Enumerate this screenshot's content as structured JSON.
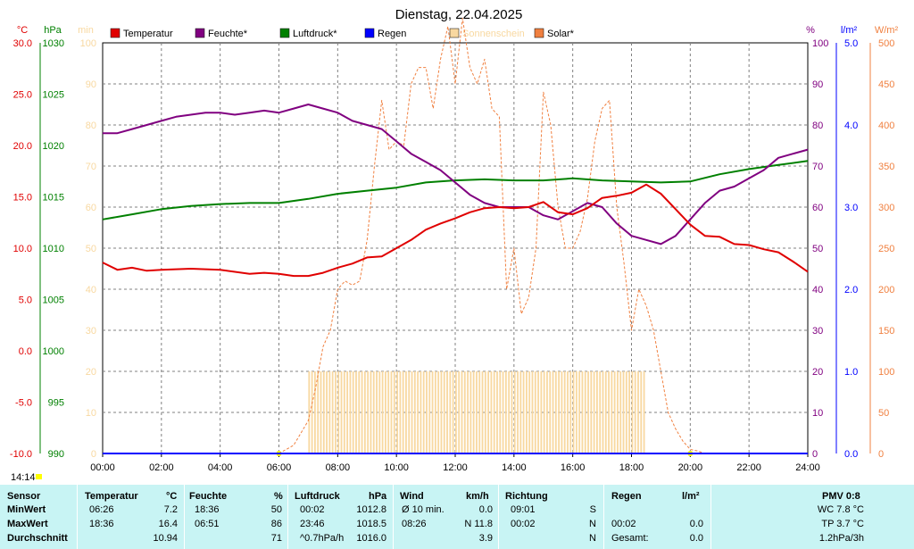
{
  "title": "Dienstag, 22.04.2025",
  "colors": {
    "temperature": "#e00000",
    "humidity": "#800080",
    "pressure": "#008000",
    "rain": "#0000ff",
    "sunshine": "#f8d8a0",
    "solar": "#f08040",
    "grid": "#808080",
    "panel": "#c8f4f4"
  },
  "axes": {
    "temp_unit": "°C",
    "pressure_unit": "hPa",
    "sun_unit": "min",
    "hum_unit": "%",
    "rain_unit": "l/m²",
    "solar_unit": "W/m²",
    "temp_ticks": [
      "30.0",
      "25.0",
      "20.0",
      "15.0",
      "10.0",
      "5.0",
      "0.0",
      "-5.0",
      "-10.0"
    ],
    "pressure_ticks": [
      "1030",
      "1025",
      "1020",
      "1015",
      "1010",
      "1005",
      "1000",
      "995",
      "990"
    ],
    "sun_ticks": [
      "100",
      "90",
      "80",
      "70",
      "60",
      "50",
      "40",
      "30",
      "20",
      "10",
      "0"
    ],
    "hum_ticks": [
      "100",
      "90",
      "80",
      "70",
      "60",
      "50",
      "40",
      "30",
      "20",
      "10",
      "0"
    ],
    "rain_ticks": [
      "5.0",
      "4.0",
      "3.0",
      "2.0",
      "1.0",
      "0.0"
    ],
    "solar_ticks": [
      "500",
      "450",
      "400",
      "350",
      "300",
      "250",
      "200",
      "150",
      "100",
      "50",
      "0"
    ],
    "time_ticks": [
      "00:00",
      "02:00",
      "04:00",
      "06:00",
      "08:00",
      "10:00",
      "12:00",
      "14:00",
      "16:00",
      "18:00",
      "20:00",
      "22:00",
      "24:00"
    ],
    "current_time": "14:14"
  },
  "legend": [
    {
      "label": "Temperatur",
      "color": "#e00000"
    },
    {
      "label": "Feuchte*",
      "color": "#800080"
    },
    {
      "label": "Luftdruck*",
      "color": "#008000"
    },
    {
      "label": "Regen",
      "color": "#0000ff"
    },
    {
      "label": "Sonnenschein",
      "color": "#f8d8a0"
    },
    {
      "label": "Solar*",
      "color": "#f08040"
    }
  ],
  "chart_data": {
    "type": "line",
    "title": "Dienstag, 22.04.2025",
    "x_range": [
      "00:00",
      "24:00"
    ],
    "temp_ylim": [
      -10,
      30
    ],
    "pressure_ylim": [
      990,
      1030
    ],
    "humidity_ylim": [
      0,
      100
    ],
    "rain_ylim": [
      0,
      5
    ],
    "solar_ylim": [
      0,
      500
    ],
    "sunshine_ylim": [
      0,
      100
    ],
    "series": [
      {
        "name": "Temperatur",
        "hours": [
          0,
          0.5,
          1,
          1.5,
          2,
          3,
          4,
          5,
          5.5,
          6,
          6.5,
          7,
          7.5,
          8,
          8.5,
          9,
          9.5,
          10,
          10.5,
          11,
          11.5,
          12,
          12.5,
          13,
          13.5,
          14,
          14.5,
          15,
          15.5,
          16,
          16.5,
          17,
          17.5,
          18,
          18.5,
          19,
          19.5,
          20,
          20.5,
          21,
          21.5,
          22,
          22.5,
          23,
          23.5,
          24
        ],
        "values": [
          8.6,
          7.9,
          8.1,
          7.8,
          7.9,
          8.0,
          7.9,
          7.5,
          7.6,
          7.5,
          7.3,
          7.3,
          7.6,
          8.1,
          8.5,
          9.1,
          9.2,
          10.0,
          10.8,
          11.8,
          12.4,
          12.9,
          13.5,
          13.9,
          14.0,
          13.9,
          14.0,
          14.5,
          13.5,
          13.3,
          13.9,
          14.9,
          15.1,
          15.4,
          16.2,
          15.3,
          13.8,
          12.3,
          11.2,
          11.1,
          10.4,
          10.3,
          9.9,
          9.6,
          8.7,
          7.7
        ]
      },
      {
        "name": "Feuchte*",
        "hours": [
          0,
          0.5,
          1,
          1.5,
          2,
          2.5,
          3,
          3.5,
          4,
          4.5,
          5,
          5.5,
          6,
          6.5,
          7,
          7.5,
          8,
          8.5,
          9,
          9.5,
          10,
          10.5,
          11,
          11.5,
          12,
          12.5,
          13,
          13.5,
          14,
          14.5,
          15,
          15.5,
          16,
          16.5,
          17,
          17.5,
          18,
          18.5,
          19,
          19.5,
          20,
          20.5,
          21,
          21.5,
          22,
          22.5,
          23,
          23.5,
          24
        ],
        "values": [
          78,
          78,
          79,
          80,
          81,
          82,
          82.5,
          83,
          83,
          82.5,
          83,
          83.5,
          83,
          84,
          85,
          84,
          83,
          81,
          80,
          79,
          76,
          73,
          71,
          69,
          66,
          63,
          61,
          60,
          60,
          60,
          58,
          57,
          59,
          61,
          60,
          56,
          53,
          52,
          51,
          53,
          57,
          61,
          64,
          65,
          67,
          69,
          72,
          73,
          74
        ]
      },
      {
        "name": "Luftdruck*",
        "hours": [
          0,
          1,
          2,
          3,
          4,
          5,
          6,
          7,
          8,
          9,
          10,
          11,
          12,
          13,
          14,
          15,
          16,
          17,
          18,
          19,
          20,
          21,
          22,
          23,
          24
        ],
        "values": [
          1012.8,
          1013.3,
          1013.8,
          1014.1,
          1014.3,
          1014.4,
          1014.4,
          1014.8,
          1015.3,
          1015.6,
          1015.9,
          1016.4,
          1016.6,
          1016.7,
          1016.6,
          1016.6,
          1016.8,
          1016.6,
          1016.5,
          1016.4,
          1016.5,
          1017.2,
          1017.7,
          1018.1,
          1018.5
        ]
      },
      {
        "name": "Regen",
        "hours": [
          0,
          24
        ],
        "values": [
          0,
          0
        ]
      },
      {
        "name": "Solar*",
        "hours": [
          6,
          6.5,
          7,
          7.25,
          7.5,
          7.75,
          8,
          8.25,
          8.5,
          8.75,
          9,
          9.25,
          9.5,
          9.75,
          10,
          10.25,
          10.5,
          10.75,
          11,
          11.25,
          11.5,
          11.75,
          12,
          12.25,
          12.5,
          12.75,
          13,
          13.25,
          13.5,
          13.75,
          14,
          14.25,
          14.5,
          14.75,
          15,
          15.25,
          15.5,
          15.75,
          16,
          16.25,
          16.5,
          16.75,
          17,
          17.25,
          17.5,
          17.75,
          18,
          18.25,
          18.5,
          18.75,
          19,
          19.25,
          19.5,
          19.75,
          20,
          20.25,
          20.5,
          20.75,
          21
        ],
        "values": [
          0,
          10,
          40,
          80,
          130,
          150,
          200,
          210,
          205,
          210,
          260,
          350,
          430,
          370,
          380,
          375,
          450,
          470,
          470,
          420,
          480,
          520,
          450,
          530,
          470,
          450,
          480,
          420,
          410,
          200,
          250,
          170,
          190,
          250,
          440,
          400,
          300,
          250,
          250,
          270,
          310,
          380,
          420,
          430,
          300,
          230,
          150,
          200,
          180,
          150,
          100,
          50,
          30,
          15,
          5,
          3,
          0,
          0,
          0
        ]
      },
      {
        "name": "Sonnenschein",
        "hours": [
          7,
          18.5
        ],
        "values": [
          20,
          20
        ]
      }
    ]
  },
  "stats": {
    "headers": {
      "sensor": "Sensor",
      "temp": "Temperatur",
      "temp_unit": "°C",
      "hum": "Feuchte",
      "hum_unit": "%",
      "press": "Luftdruck",
      "press_unit": "hPa",
      "wind": "Wind",
      "wind_unit": "km/h",
      "dir": "Richtung",
      "rain": "Regen",
      "rain_unit": "l/m²",
      "pmv": "PMV 0:8"
    },
    "rows": [
      {
        "label": "MinWert",
        "temp_time": "06:26",
        "temp_val": "7.2",
        "hum_time": "18:36",
        "hum_val": "50",
        "press_time": "00:02",
        "press_val": "1012.8",
        "wind_label": "Ø 10 min.",
        "wind_val": "0.0",
        "dir_time": "09:01",
        "dir_val": "S",
        "rain_time": "",
        "rain_val": "",
        "extra": "WC 7.8 °C"
      },
      {
        "label": "MaxWert",
        "temp_time": "18:36",
        "temp_val": "16.4",
        "hum_time": "06:51",
        "hum_val": "86",
        "press_time": "23:46",
        "press_val": "1018.5",
        "wind_label": "08:26",
        "wind_val": "N 11.8",
        "dir_time": "00:02",
        "dir_val": "N",
        "rain_time": "00:02",
        "rain_val": "0.0",
        "extra": "TP 3.7 °C"
      },
      {
        "label": "Durchschnitt",
        "temp_time": "",
        "temp_val": "10.94",
        "hum_time": "",
        "hum_val": "71",
        "press_time": "^0.7hPa/h",
        "press_val": "1016.0",
        "wind_label": "",
        "wind_val": "3.9",
        "dir_time": "",
        "dir_val": "N",
        "rain_time": "Gesamt:",
        "rain_val": "0.0",
        "extra": "1.2hPa/3h"
      }
    ]
  }
}
